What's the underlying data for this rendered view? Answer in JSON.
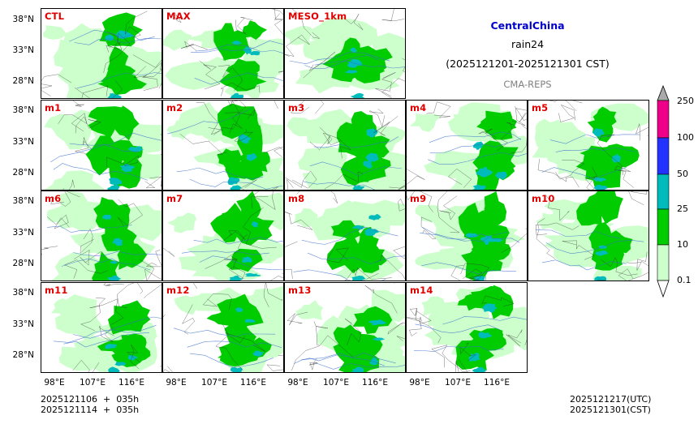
{
  "header": {
    "region": "CentralChina",
    "variable": "rain24",
    "period": "(2025121201-2025121301 CST)",
    "system": "CMA-REPS"
  },
  "panels": [
    "CTL",
    "MAX",
    "MESO_1km",
    "m1",
    "m2",
    "m3",
    "m4",
    "m5",
    "m6",
    "m7",
    "m8",
    "m9",
    "m10",
    "m11",
    "m12",
    "m13",
    "m14"
  ],
  "axes": {
    "lat_labels": [
      "38°N",
      "33°N",
      "28°N"
    ],
    "lon_labels": [
      "98°E",
      "107°E",
      "116°E"
    ]
  },
  "colorbar": {
    "levels": [
      "0.1",
      "10",
      "25",
      "50",
      "100",
      "250"
    ],
    "colors": [
      "#ccffcc",
      "#00cc00",
      "#00bbbb",
      "#2233ff",
      "#ee0088"
    ],
    "extend_low_color": "#ffffff",
    "extend_high_color": "#aaaaaa"
  },
  "footer": {
    "init_utc": "2025121106  +  035h",
    "init_cst": "2025121114  +  035h",
    "valid_utc": "2025121217(UTC)",
    "valid_cst": "2025121301(CST)"
  }
}
